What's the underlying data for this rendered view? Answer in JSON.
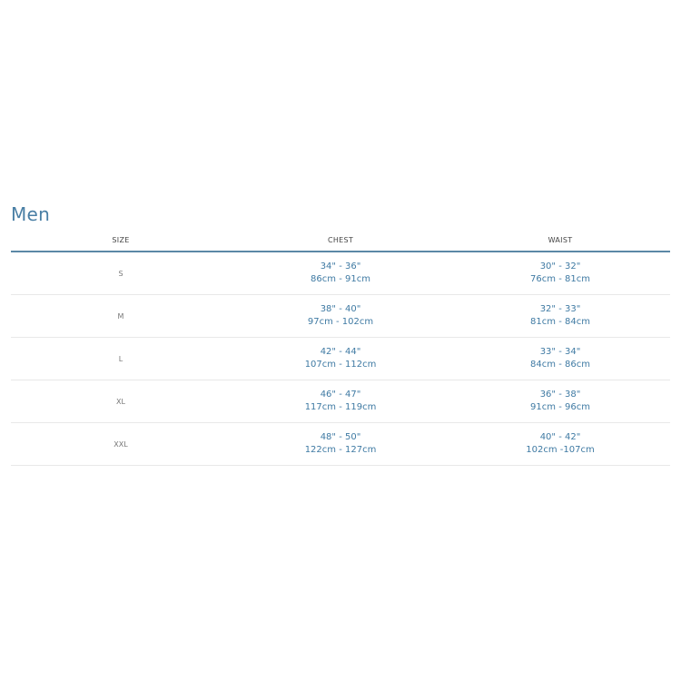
{
  "title": "Men",
  "columns": [
    "SIZE",
    "CHEST",
    "WAIST"
  ],
  "rows": [
    {
      "size": "S",
      "chest_in": "34\" - 36\"",
      "chest_cm": "86cm - 91cm",
      "waist_in": "30\" - 32\"",
      "waist_cm": "76cm - 81cm"
    },
    {
      "size": "M",
      "chest_in": "38\" - 40\"",
      "chest_cm": "97cm - 102cm",
      "waist_in": "32\" - 33\"",
      "waist_cm": "81cm - 84cm"
    },
    {
      "size": "L",
      "chest_in": "42\" - 44\"",
      "chest_cm": "107cm - 112cm",
      "waist_in": "33\" - 34\"",
      "waist_cm": "84cm - 86cm"
    },
    {
      "size": "XL",
      "chest_in": "46\" - 47\"",
      "chest_cm": "117cm - 119cm",
      "waist_in": "36\" - 38\"",
      "waist_cm": "91cm - 96cm"
    },
    {
      "size": "XXL",
      "chest_in": "48\" - 50\"",
      "chest_cm": "122cm - 127cm",
      "waist_in": "40\" - 42\"",
      "waist_cm": "102cm -107cm"
    }
  ],
  "colors": {
    "accent": "#4a7fa5",
    "header_rule": "#5b88a6"
  }
}
